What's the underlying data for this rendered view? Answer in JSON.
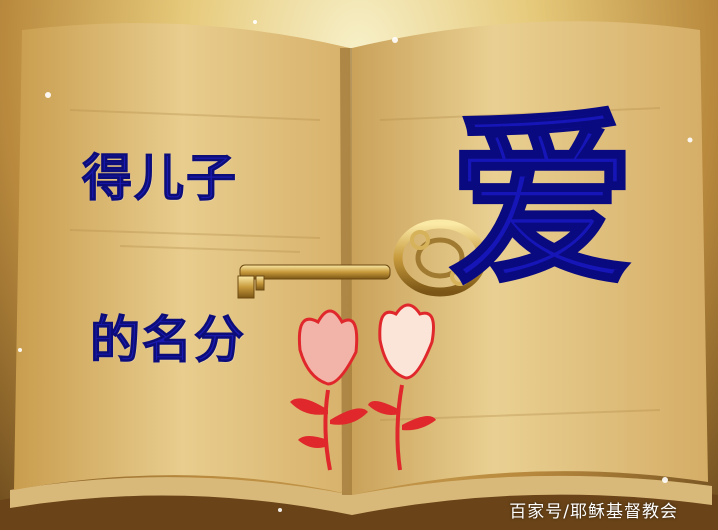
{
  "text": {
    "line1": "得儿子",
    "line2": "的名分",
    "big_char": "爱",
    "watermark": "百家号/耶稣基督教会"
  },
  "colors": {
    "text_blue": "#1a1ab0",
    "page_gold": "#e3c27a",
    "flower_red": "#e0282c",
    "flower_pink": "#f2b4a8",
    "key_gold": "#c9a24a"
  },
  "icons": [
    "book-image",
    "key-image",
    "flower-left-image",
    "flower-right-image",
    "sparkle-icon"
  ]
}
